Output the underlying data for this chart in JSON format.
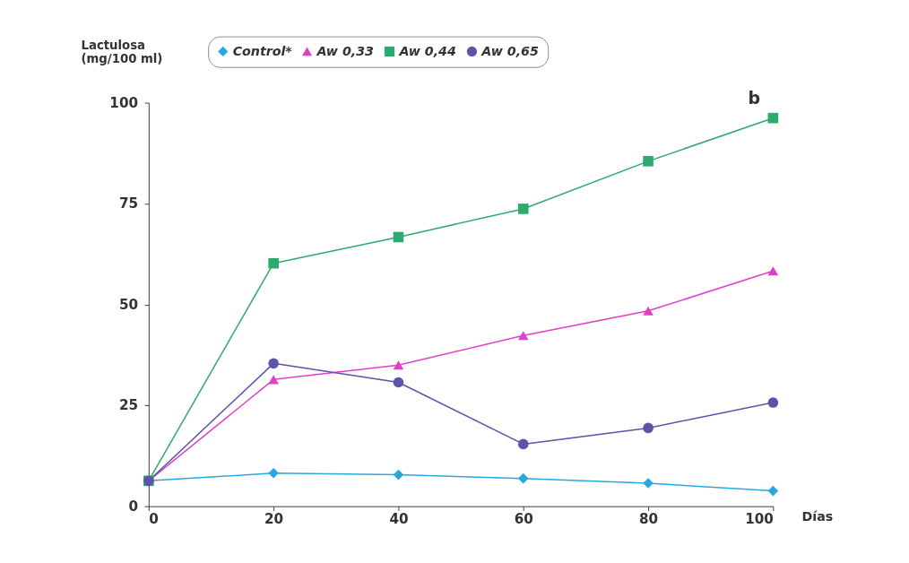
{
  "chart_data": {
    "type": "line",
    "ylabel": "Lactulosa\n(mg/100 ml)",
    "xlabel": "Días",
    "annotations": [
      "b"
    ],
    "x": [
      0,
      20,
      40,
      60,
      80,
      100
    ],
    "xlim": [
      0,
      100
    ],
    "xticks": [
      0,
      20,
      40,
      60,
      80,
      100
    ],
    "ylim": [
      0,
      100
    ],
    "yticks": [
      0,
      25,
      50,
      75,
      100
    ],
    "grid": false,
    "legend": "top",
    "series": [
      {
        "name": "Control*",
        "color": "#29a8e0",
        "marker": "diamond",
        "values": [
          6.3,
          8.2,
          7.8,
          6.9,
          5.7,
          3.8
        ]
      },
      {
        "name": "Aw 0,33",
        "color": "#e040c8",
        "marker": "triangle",
        "values": [
          6.3,
          31.4,
          35,
          42.3,
          48.4,
          58.3
        ]
      },
      {
        "name": "Aw 0,44",
        "color": "#2eaa6e",
        "marker": "square",
        "values": [
          6.3,
          60.2,
          66.7,
          73.7,
          85.5,
          96.2
        ]
      },
      {
        "name": "Aw 0,65",
        "color": "#5a55a8",
        "marker": "circle",
        "values": [
          6.3,
          35.4,
          30.7,
          15.4,
          19.4,
          25.7
        ]
      }
    ]
  }
}
